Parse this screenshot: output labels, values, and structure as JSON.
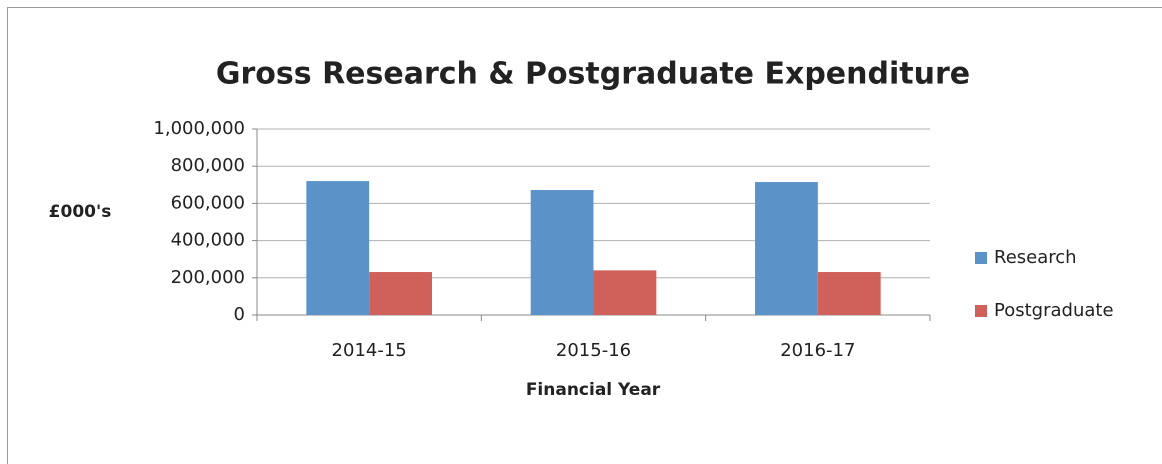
{
  "chart_data": {
    "type": "bar",
    "title": "Gross Research & Postgraduate Expenditure",
    "y_label": "£000's",
    "x_label": "Financial Year",
    "categories": [
      "2014-15",
      "2015-16",
      "2016-17"
    ],
    "series": [
      {
        "name": "Research",
        "color": "#5b93c9",
        "values": [
          720000,
          672000,
          715000
        ]
      },
      {
        "name": "Postgraduate",
        "color": "#d0605a",
        "values": [
          231000,
          240000,
          231000
        ]
      }
    ],
    "ylim": [
      0,
      1000000
    ],
    "yticks": [
      0,
      {
        "value": 200000,
        "label": "200,000"
      },
      {
        "value": 400000,
        "label": "400,000"
      },
      {
        "value": 600000,
        "label": "600,000"
      },
      {
        "value": 800000,
        "label": "800,000"
      },
      {
        "value": 1000000,
        "label": "1,000,000"
      }
    ],
    "grid": true,
    "legend": "right"
  }
}
